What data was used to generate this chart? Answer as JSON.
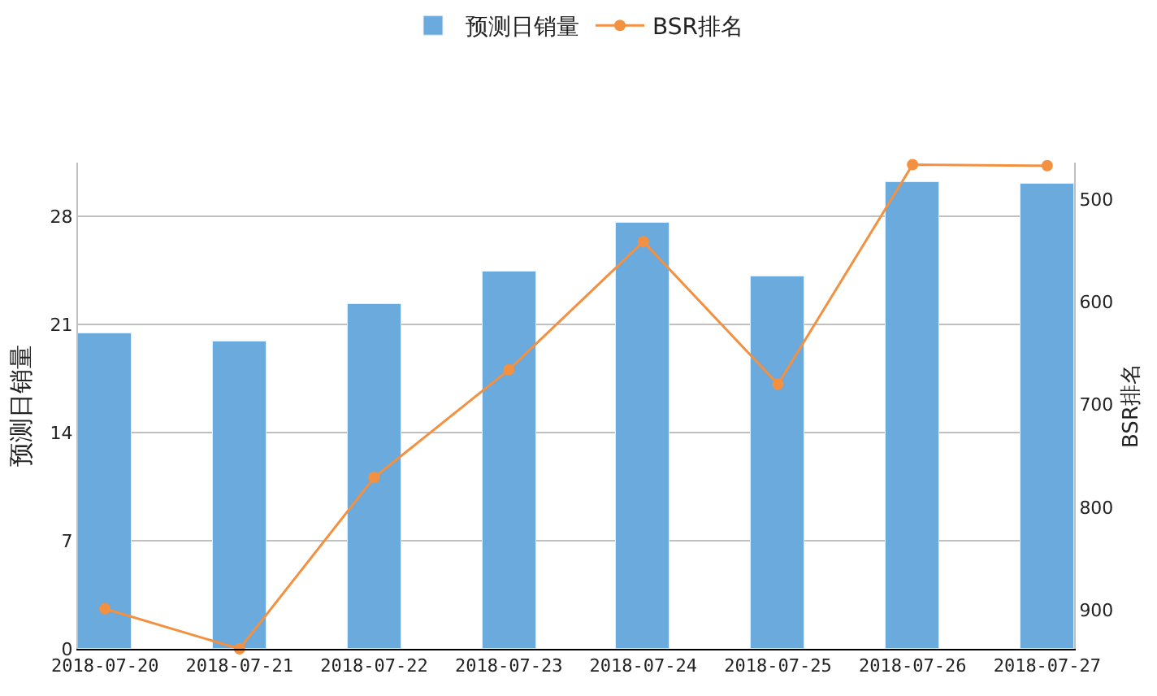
{
  "chart_data": {
    "type": "bar",
    "categories": [
      "2018-07-20",
      "2018-07-21",
      "2018-07-22",
      "2018-07-23",
      "2018-07-24",
      "2018-07-25",
      "2018-07-26",
      "2018-07-27"
    ],
    "series": [
      {
        "name": "预测日销量",
        "color": "#6aaadc",
        "values": [
          20.4,
          19.9,
          22.3,
          24.4,
          27.6,
          24.1,
          30.2,
          30.1
        ]
      },
      {
        "name": "BSR排名",
        "type": "line",
        "axis": "y2",
        "color": "#f39142",
        "values": [
          899,
          938,
          771,
          666,
          541,
          680,
          466,
          467
        ]
      }
    ],
    "ylabel": "预测日销量",
    "y2label": "BSR排名",
    "ylim": [
      0,
      31.5
    ],
    "yticks": [
      0,
      7,
      14,
      21,
      28
    ],
    "y2lim": [
      938,
      464
    ],
    "y2ticks": [
      500,
      600,
      700,
      800,
      900
    ],
    "grid": "y",
    "legend": "top",
    "marker": "circle"
  }
}
